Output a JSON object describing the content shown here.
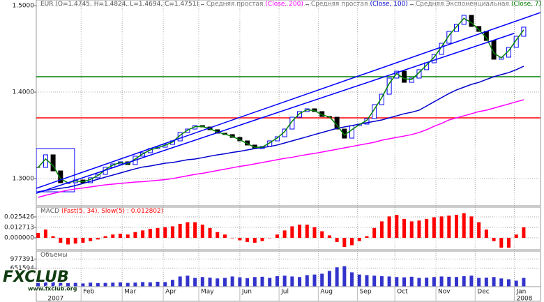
{
  "chart_data": [
    {
      "type": "candlestick",
      "title": "EUR (O=1.4745, H=1.4824, L=1.4694, C=1.4751)",
      "x": [
        1,
        5,
        9,
        13,
        17,
        21,
        25,
        29,
        33,
        37,
        41,
        45,
        49,
        53,
        57,
        61,
        65,
        69,
        73,
        77,
        81,
        85,
        89,
        93,
        97,
        101,
        105,
        109,
        113,
        117,
        121,
        125,
        129,
        133,
        137,
        141,
        145,
        149,
        153,
        157,
        161,
        165,
        169,
        173,
        177,
        181,
        185,
        189,
        193,
        197,
        201,
        205,
        209,
        213,
        217,
        221,
        225,
        229,
        233,
        237,
        241,
        245,
        249,
        253,
        257,
        261
      ],
      "close": [
        1.313,
        1.3275,
        1.3089,
        1.2952,
        1.2952,
        1.2984,
        1.2952,
        1.3009,
        1.3049,
        1.313,
        1.317,
        1.3194,
        1.3162,
        1.3259,
        1.3299,
        1.3347,
        1.3363,
        1.3396,
        1.3436,
        1.3533,
        1.3573,
        1.3613,
        1.3597,
        1.3565,
        1.3525,
        1.3509,
        1.3476,
        1.3436,
        1.3388,
        1.3347,
        1.3371,
        1.3436,
        1.3484,
        1.3573,
        1.371,
        1.3775,
        1.3807,
        1.3775,
        1.3718,
        1.371,
        1.3573,
        1.3468,
        1.3613,
        1.363,
        1.3694,
        1.3855,
        1.3976,
        1.4162,
        1.4242,
        1.4113,
        1.4162,
        1.4259,
        1.4339,
        1.4436,
        1.4565,
        1.4702,
        1.4783,
        1.4888,
        1.4759,
        1.4702,
        1.4597,
        1.438,
        1.4404,
        1.4517,
        1.4646,
        1.4751
      ],
      "up_color": "#0000ff",
      "down_color": "#000000",
      "series": [
        {
          "name": "Средняя простая",
          "label": "(Close, 200)",
          "color": "#ff00ff",
          "values": [
            1.2783,
            1.2807,
            1.2827,
            1.2847,
            1.2867,
            1.288,
            1.2892,
            1.2904,
            1.2916,
            1.2928,
            1.2936,
            1.2944,
            1.2952,
            1.296,
            1.2964,
            1.2972,
            1.298,
            1.2988,
            1.3,
            1.3017,
            1.3033,
            1.3049,
            1.3061,
            1.3077,
            1.3093,
            1.3109,
            1.3125,
            1.3142,
            1.3154,
            1.317,
            1.3186,
            1.3202,
            1.3218,
            1.3234,
            1.3246,
            1.3263,
            1.3279,
            1.3291,
            1.3307,
            1.3323,
            1.3339,
            1.3355,
            1.3371,
            1.3388,
            1.3404,
            1.342,
            1.3444,
            1.346,
            1.3476,
            1.3492,
            1.3509,
            1.3533,
            1.3565,
            1.3605,
            1.3638,
            1.3678,
            1.3702,
            1.3726,
            1.375,
            1.3775,
            1.3791,
            1.3815,
            1.3839,
            1.3863,
            1.3888,
            1.3912
          ]
        },
        {
          "name": "Средняя простая",
          "label": "(Close, 100)",
          "color": "#0000cc",
          "values": [
            1.2847,
            1.2863,
            1.2875,
            1.2888,
            1.29,
            1.292,
            1.2944,
            1.2968,
            1.2992,
            1.3017,
            1.3041,
            1.3065,
            1.3089,
            1.3113,
            1.3134,
            1.3146,
            1.3162,
            1.3178,
            1.3186,
            1.3202,
            1.3218,
            1.3226,
            1.3242,
            1.3259,
            1.3275,
            1.3287,
            1.3303,
            1.3315,
            1.3331,
            1.3347,
            1.3359,
            1.3371,
            1.3388,
            1.3412,
            1.3436,
            1.346,
            1.3484,
            1.3509,
            1.3533,
            1.3557,
            1.3581,
            1.3597,
            1.3613,
            1.363,
            1.3646,
            1.3662,
            1.3678,
            1.3702,
            1.3726,
            1.375,
            1.3767,
            1.3791,
            1.3839,
            1.3888,
            1.3936,
            1.3984,
            1.4025,
            1.4057,
            1.4089,
            1.4113,
            1.4146,
            1.4178,
            1.4202,
            1.4226,
            1.4259,
            1.4299
          ]
        },
        {
          "name": "Средняя Экспоненциальная",
          "label": "(Close, 7)",
          "color": "#008000",
          "values": [
            1.313,
            1.3227,
            1.3151,
            1.2998,
            1.2952,
            1.2973,
            1.2963,
            1.299,
            1.3036,
            1.3103,
            1.3157,
            1.3186,
            1.317,
            1.3227,
            1.3286,
            1.3331,
            1.3358,
            1.3385,
            1.3423,
            1.3501,
            1.356,
            1.36,
            1.3602,
            1.3576,
            1.3538,
            1.3514,
            1.3487,
            1.3449,
            1.3404,
            1.3361,
            1.3363,
            1.3414,
            1.3469,
            1.3543,
            1.3664,
            1.3753,
            1.3796,
            1.3786,
            1.3737,
            1.3713,
            1.3619,
            1.3503,
            1.3565,
            1.3624,
            1.3673,
            1.3801,
            1.3936,
            1.41,
            1.4215,
            1.4156,
            1.4146,
            1.4227,
            1.4312,
            1.4404,
            1.4522,
            1.4656,
            1.4756,
            1.4853,
            1.4802,
            1.4721,
            1.463,
            1.4452,
            1.4396,
            1.4479,
            1.4603,
            1.4719
          ]
        }
      ],
      "trendlines": [
        {
          "x": [
            0,
            270
          ],
          "y": [
            1.2887,
            1.492
          ],
          "color": "#0000ff"
        },
        {
          "x": [
            0,
            256
          ],
          "y": [
            1.283,
            1.468
          ],
          "color": "#0000ff"
        }
      ],
      "hlines": [
        {
          "value": 1.4178,
          "color": "#008000"
        },
        {
          "value": 1.3702,
          "color": "#ff0000"
        }
      ],
      "rectangle": {
        "x": [
          0,
          20.5
        ],
        "y": [
          1.2847,
          1.3347
        ],
        "color": "#0000ff"
      },
      "xlim": [
        0,
        270
      ],
      "ylim": [
        1.2686,
        1.5065
      ],
      "yticks": [
        {
          "value": 1.5,
          "label": "1.5000"
        },
        {
          "value": 1.4,
          "label": "1.4000"
        },
        {
          "value": 1.3,
          "label": "1.3000"
        }
      ],
      "grid": true
    },
    {
      "type": "bar",
      "title": "MACD",
      "label": "(Fast(5, 34), Slow(5) : 0.012802)",
      "label_color": "#ff0000",
      "x": [
        1,
        5,
        9,
        13,
        17,
        21,
        25,
        29,
        33,
        37,
        41,
        45,
        49,
        53,
        57,
        61,
        65,
        69,
        73,
        77,
        81,
        85,
        89,
        93,
        97,
        101,
        105,
        109,
        113,
        117,
        121,
        125,
        129,
        133,
        137,
        141,
        145,
        149,
        153,
        157,
        161,
        165,
        169,
        173,
        177,
        181,
        185,
        189,
        193,
        197,
        201,
        205,
        209,
        213,
        217,
        221,
        225,
        229,
        233,
        237,
        241,
        245,
        249,
        253,
        257,
        261
      ],
      "values": [
        0.006,
        0.01,
        0.002,
        -0.006,
        -0.008,
        -0.007,
        -0.006,
        -0.004,
        -0.002,
        0.002,
        0.004,
        0.005,
        0.004,
        0.007,
        0.009,
        0.011,
        0.012,
        0.013,
        0.014,
        0.017,
        0.019,
        0.019,
        0.016,
        0.012,
        0.007,
        0.004,
        0.0,
        -0.003,
        -0.005,
        -0.006,
        -0.004,
        0.0,
        0.004,
        0.009,
        0.014,
        0.016,
        0.016,
        0.013,
        0.008,
        0.003,
        -0.005,
        -0.011,
        -0.009,
        -0.004,
        0.002,
        0.012,
        0.02,
        0.026,
        0.028,
        0.023,
        0.02,
        0.021,
        0.023,
        0.025,
        0.026,
        0.027,
        0.028,
        0.03,
        0.026,
        0.019,
        0.01,
        -0.004,
        -0.012,
        -0.012,
        0.004,
        0.0128
      ],
      "color": "#ff0000",
      "xlim": [
        0,
        270
      ],
      "ylim": [
        -0.01441,
        0.03729
      ],
      "yticks": [
        0.025426,
        0.012713,
        {
          "value": 0,
          "label": "0.000000"
        }
      ],
      "grid": true
    },
    {
      "type": "bar",
      "title": "Объемы",
      "x": [
        1,
        5,
        9,
        13,
        17,
        21,
        25,
        29,
        33,
        37,
        41,
        45,
        49,
        53,
        57,
        61,
        65,
        69,
        73,
        77,
        81,
        85,
        89,
        93,
        97,
        101,
        105,
        109,
        113,
        117,
        121,
        125,
        129,
        133,
        137,
        141,
        145,
        149,
        153,
        157,
        161,
        165,
        169,
        173,
        177,
        181,
        185,
        189,
        193,
        197,
        201,
        205,
        209,
        213,
        217,
        221,
        225,
        229,
        233,
        237,
        241,
        245,
        249,
        253,
        257,
        261
      ],
      "values": [
        120000,
        140000,
        150000,
        130000,
        110000,
        120000,
        100000,
        130000,
        110000,
        120000,
        130000,
        140000,
        120000,
        130000,
        150000,
        140000,
        160000,
        150000,
        230000,
        350000,
        380000,
        300000,
        330000,
        310000,
        280000,
        300000,
        350000,
        320000,
        290000,
        330000,
        340000,
        300000,
        360000,
        380000,
        350000,
        330000,
        400000,
        420000,
        450000,
        550000,
        680000,
        720000,
        500000,
        420000,
        400000,
        380000,
        360000,
        350000,
        330000,
        320000,
        340000,
        300000,
        310000,
        330000,
        350000,
        340000,
        330000,
        360000,
        380000,
        300000,
        310000,
        330000,
        280000,
        250000,
        200000,
        300000
      ],
      "color": "#3333cc",
      "xlim": [
        0,
        270
      ],
      "ylim": [
        -15000,
        1263000
      ],
      "yticks": [
        977391,
        651594
      ],
      "xticks": [
        {
          "value": 24,
          "label": "Feb"
        },
        {
          "value": 46,
          "label": "Mar"
        },
        {
          "value": 68,
          "label": "Apr"
        },
        {
          "value": 87,
          "label": "May"
        },
        {
          "value": 109,
          "label": "Jun"
        },
        {
          "value": 130,
          "label": "Jul"
        },
        {
          "value": 151,
          "label": "Aug"
        },
        {
          "value": 172,
          "label": "Sep"
        },
        {
          "value": 192,
          "label": "Oct"
        },
        {
          "value": 214,
          "label": "Nov"
        },
        {
          "value": 235,
          "label": "Dec"
        },
        {
          "value": 256,
          "label": "Jan"
        }
      ],
      "year_labels": [
        {
          "value": 5,
          "label": "2007"
        },
        {
          "value": 256,
          "label": "2008"
        }
      ],
      "grid": true
    }
  ],
  "logo": {
    "text": "FXCLUB",
    "url": "www.fxclub.org"
  }
}
